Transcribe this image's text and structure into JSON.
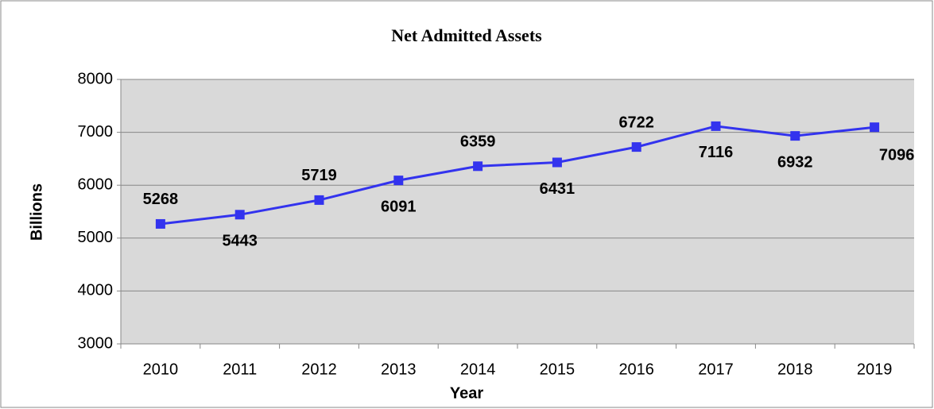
{
  "chart_data": {
    "type": "line",
    "title": "Net Admitted Assets",
    "x_label": "Year",
    "y_label": "Billions",
    "categories": [
      "2010",
      "2011",
      "2012",
      "2013",
      "2014",
      "2015",
      "2016",
      "2017",
      "2018",
      "2019"
    ],
    "series": [
      {
        "name": "Net Admitted Assets",
        "color": "#3333ee",
        "values": [
          5268,
          5443,
          5719,
          6091,
          6359,
          6431,
          6722,
          7116,
          6932,
          7096
        ]
      }
    ],
    "ylim": [
      3000,
      8000
    ],
    "yticks": [
      3000,
      4000,
      5000,
      6000,
      7000,
      8000
    ],
    "grid": true
  }
}
